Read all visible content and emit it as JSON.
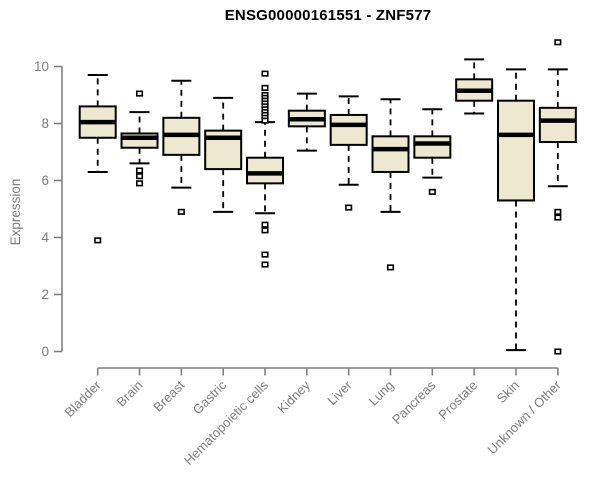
{
  "chart_data": {
    "type": "boxplot",
    "title": "ENSG00000161551 - ZNF577",
    "ylabel": "Expression",
    "xlabel": "",
    "ylim": [
      0,
      10
    ],
    "yticks": [
      0,
      2,
      4,
      6,
      8,
      10
    ],
    "grid": false,
    "legend": false,
    "colors": {
      "box_fill": "#ede8d0",
      "box_border": "#000000",
      "median": "#000000",
      "whisker": "#000000",
      "outlier": "#000000",
      "axis": "#808080",
      "tick_label": "#7d7d7d",
      "title": "#000000",
      "background": "#ffffff"
    },
    "categories": [
      "Bladder",
      "Brain",
      "Breast",
      "Gastric",
      "Hematopoietic cells",
      "Kidney",
      "Liver",
      "Lung",
      "Pancreas",
      "Prostate",
      "Skin",
      "Unknown / Other"
    ],
    "series": [
      {
        "name": "Bladder",
        "whisker_low": 6.3,
        "q1": 7.5,
        "median": 8.05,
        "q3": 8.6,
        "whisker_high": 9.7,
        "outliers": [
          3.9
        ]
      },
      {
        "name": "Brain",
        "whisker_low": 6.6,
        "q1": 7.15,
        "median": 7.5,
        "q3": 7.65,
        "whisker_high": 8.4,
        "outliers": [
          9.05,
          6.35,
          6.15,
          5.9
        ]
      },
      {
        "name": "Breast",
        "whisker_low": 5.75,
        "q1": 6.9,
        "median": 7.6,
        "q3": 8.2,
        "whisker_high": 9.5,
        "outliers": [
          4.9
        ]
      },
      {
        "name": "Gastric",
        "whisker_low": 4.9,
        "q1": 6.4,
        "median": 7.5,
        "q3": 7.75,
        "whisker_high": 8.9,
        "outliers": []
      },
      {
        "name": "Hematopoietic cells",
        "whisker_low": 4.85,
        "q1": 5.9,
        "median": 6.25,
        "q3": 6.8,
        "whisker_high": 8.05,
        "outliers": [
          9.75,
          9.25,
          9.0,
          8.9,
          8.8,
          8.7,
          8.6,
          8.5,
          8.4,
          8.3,
          8.2,
          8.1,
          4.45,
          4.25,
          3.4,
          3.05
        ]
      },
      {
        "name": "Kidney",
        "whisker_low": 7.05,
        "q1": 7.9,
        "median": 8.15,
        "q3": 8.45,
        "whisker_high": 9.05,
        "outliers": []
      },
      {
        "name": "Liver",
        "whisker_low": 5.85,
        "q1": 7.25,
        "median": 7.95,
        "q3": 8.3,
        "whisker_high": 8.95,
        "outliers": [
          5.05
        ]
      },
      {
        "name": "Lung",
        "whisker_low": 4.9,
        "q1": 6.3,
        "median": 7.1,
        "q3": 7.55,
        "whisker_high": 8.85,
        "outliers": [
          2.95
        ]
      },
      {
        "name": "Pancreas",
        "whisker_low": 6.1,
        "q1": 6.8,
        "median": 7.3,
        "q3": 7.55,
        "whisker_high": 8.5,
        "outliers": [
          5.6
        ]
      },
      {
        "name": "Prostate",
        "whisker_low": 8.35,
        "q1": 8.8,
        "median": 9.15,
        "q3": 9.55,
        "whisker_high": 10.25,
        "outliers": []
      },
      {
        "name": "Skin",
        "whisker_low": 0.05,
        "q1": 5.3,
        "median": 7.6,
        "q3": 8.8,
        "whisker_high": 9.9,
        "outliers": []
      },
      {
        "name": "Unknown / Other",
        "whisker_low": 5.8,
        "q1": 7.35,
        "median": 8.1,
        "q3": 8.55,
        "whisker_high": 9.9,
        "outliers": [
          10.85,
          4.9,
          4.7,
          0.0
        ]
      }
    ]
  }
}
